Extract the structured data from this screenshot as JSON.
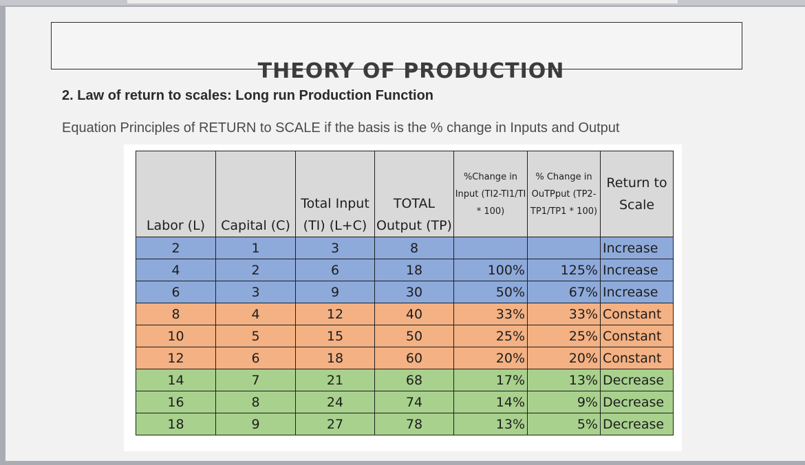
{
  "document": {
    "title": "THEORY OF PRODUCTION",
    "subtitle": "2. Law of return to scales: Long run Production Function",
    "equation_text": "Equation Principles of RETURN to SCALE if the basis is the %  change in Inputs and Output"
  },
  "table": {
    "headers": [
      "Labor (L)",
      "Capital (C)",
      "Total Input (TI) (L+C)",
      "TOTAL Output (TP)",
      "%Change in Input (TI2-TI1/TI * 100)",
      "% Change in OuTPput (TP2-TP1/TP1 * 100)",
      "Return to Scale"
    ],
    "rows": [
      {
        "color": "blue",
        "cells": [
          "2",
          "1",
          "3",
          "8",
          "",
          "",
          "Increase"
        ]
      },
      {
        "color": "blue",
        "cells": [
          "4",
          "2",
          "6",
          "18",
          "100%",
          "125%",
          "Increase"
        ]
      },
      {
        "color": "blue",
        "cells": [
          "6",
          "3",
          "9",
          "30",
          "50%",
          "67%",
          "Increase"
        ]
      },
      {
        "color": "orange",
        "cells": [
          "8",
          "4",
          "12",
          "40",
          "33%",
          "33%",
          "Constant"
        ]
      },
      {
        "color": "orange",
        "cells": [
          "10",
          "5",
          "15",
          "50",
          "25%",
          "25%",
          "Constant"
        ]
      },
      {
        "color": "orange",
        "cells": [
          "12",
          "6",
          "18",
          "60",
          "20%",
          "20%",
          "Constant"
        ]
      },
      {
        "color": "green",
        "cells": [
          "14",
          "7",
          "21",
          "68",
          "17%",
          "13%",
          "Decrease"
        ]
      },
      {
        "color": "green",
        "cells": [
          "16",
          "8",
          "24",
          "74",
          "14%",
          "9%",
          "Decrease"
        ]
      },
      {
        "color": "green",
        "cells": [
          "18",
          "9",
          "27",
          "78",
          "13%",
          "5%",
          "Decrease"
        ]
      }
    ]
  },
  "colors": {
    "increase": "#8eaadb",
    "constant": "#f4b183",
    "decrease": "#a9d18e",
    "header": "#d9d9d9"
  }
}
